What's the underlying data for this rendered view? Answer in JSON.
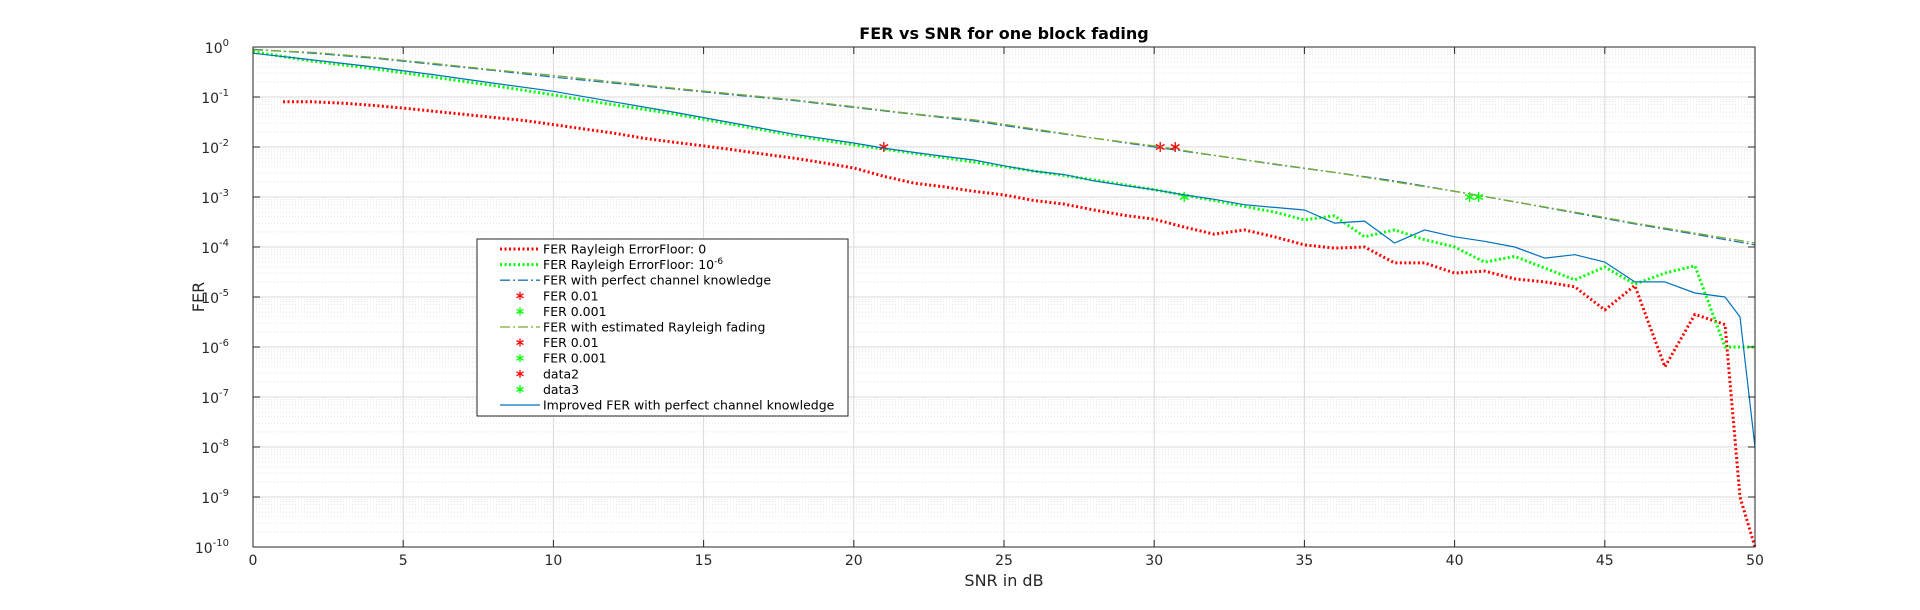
{
  "chart_data": {
    "type": "line",
    "title": "FER vs SNR for one block fading",
    "xlabel": "SNR in dB",
    "ylabel": "FER",
    "xlim": [
      0,
      50
    ],
    "ylim_exponent": [
      -10,
      0
    ],
    "yscale": "log",
    "grid": true,
    "minor_grid": true,
    "legend_position": "center-left",
    "x_ticks": [
      0,
      5,
      10,
      15,
      20,
      25,
      30,
      35,
      40,
      45,
      50
    ],
    "y_tick_exponents": [
      0,
      -1,
      -2,
      -3,
      -4,
      -5,
      -6,
      -7,
      -8,
      -9,
      -10
    ],
    "y_tick_base": "10",
    "series": [
      {
        "name": "FER Rayleigh ErrorFloor: 0",
        "style": "dotted",
        "color": "#ff0000",
        "width": 3,
        "x": [
          1,
          2,
          3,
          4,
          5,
          6,
          7,
          8,
          9,
          10,
          11,
          12,
          13,
          14,
          15,
          16,
          17,
          18,
          19,
          20,
          21,
          22,
          23,
          24,
          25,
          26,
          27,
          28,
          29,
          30,
          31,
          32,
          33,
          34,
          35,
          36,
          37,
          38,
          39,
          40,
          41,
          42,
          43,
          44,
          45,
          46,
          47,
          48,
          49,
          49.5,
          50
        ],
        "y": [
          0.08,
          0.08,
          0.075,
          0.068,
          0.06,
          0.052,
          0.045,
          0.039,
          0.034,
          0.028,
          0.023,
          0.019,
          0.015,
          0.0125,
          0.0105,
          0.0088,
          0.0072,
          0.006,
          0.0048,
          0.0038,
          0.0026,
          0.0019,
          0.0016,
          0.0013,
          0.0011,
          0.00085,
          0.00072,
          0.00055,
          0.00043,
          0.00036,
          0.00025,
          0.00018,
          0.00022,
          0.00016,
          0.00011,
          9.5e-05,
          0.0001,
          4.8e-05,
          4.8e-05,
          3e-05,
          3.3e-05,
          2.3e-05,
          2e-05,
          1.6e-05,
          5.5e-06,
          1.7e-05,
          4e-07,
          4.5e-06,
          2.8e-06,
          1e-09,
          1e-10
        ]
      },
      {
        "name": "FER Rayleigh ErrorFloor: 10",
        "name_superscript": "-6",
        "style": "dotted",
        "color": "#00ff00",
        "width": 3,
        "x": [
          0,
          2,
          4,
          6,
          8,
          10,
          12,
          14,
          16,
          18,
          20,
          22,
          24,
          26,
          28,
          30,
          32,
          34,
          35,
          36,
          37,
          38,
          39,
          40,
          41,
          42,
          43,
          44,
          45,
          46,
          47,
          48,
          49,
          50
        ],
        "y": [
          0.8,
          0.52,
          0.37,
          0.25,
          0.17,
          0.11,
          0.07,
          0.046,
          0.028,
          0.017,
          0.011,
          0.0075,
          0.005,
          0.0033,
          0.0022,
          0.0014,
          0.00085,
          0.0005,
          0.00035,
          0.00042,
          0.00016,
          0.00022,
          0.00014,
          0.0001,
          5e-05,
          6.5e-05,
          3.8e-05,
          2.2e-05,
          4e-05,
          1.8e-05,
          3e-05,
          4.2e-05,
          1e-06,
          1e-06
        ]
      },
      {
        "name": "FER with perfect channel knowledge",
        "style": "dashdot",
        "color": "#1f77b4",
        "width": 1.3,
        "x": [
          0,
          2,
          4,
          6,
          8,
          10,
          12,
          14,
          16,
          18,
          20,
          22,
          24,
          26,
          28,
          30,
          32,
          34,
          36,
          38,
          40,
          42,
          44,
          46,
          48,
          50
        ],
        "y": [
          0.9,
          0.75,
          0.6,
          0.45,
          0.34,
          0.25,
          0.19,
          0.145,
          0.11,
          0.085,
          0.062,
          0.045,
          0.033,
          0.022,
          0.015,
          0.01,
          0.0068,
          0.0045,
          0.0031,
          0.0021,
          0.0013,
          0.0008,
          0.00048,
          0.00029,
          0.00018,
          0.00011
        ]
      },
      {
        "name": "FER 0.01",
        "style": "marker",
        "color": "#ff0000",
        "x": [
          30.2
        ],
        "y": [
          0.01
        ]
      },
      {
        "name": "FER 0.001",
        "style": "marker",
        "color": "#00ff00",
        "x": [
          40.5
        ],
        "y": [
          0.001
        ]
      },
      {
        "name": "FER with estimated Rayleigh fading",
        "style": "dashdot",
        "color": "#77ac30",
        "width": 1.3,
        "x": [
          0,
          2,
          4,
          6,
          8,
          10,
          12,
          14,
          16,
          18,
          20,
          22,
          24,
          26,
          28,
          30,
          32,
          34,
          36,
          38,
          40,
          42,
          44,
          46,
          48,
          50
        ],
        "y": [
          0.88,
          0.78,
          0.62,
          0.47,
          0.35,
          0.27,
          0.2,
          0.15,
          0.115,
          0.088,
          0.064,
          0.046,
          0.035,
          0.023,
          0.015,
          0.0105,
          0.0068,
          0.0046,
          0.0031,
          0.002,
          0.0013,
          0.0008,
          0.0005,
          0.0003,
          0.00019,
          0.00012
        ]
      },
      {
        "name": "FER 0.01",
        "style": "marker",
        "color": "#ff0000",
        "x": [
          30.7
        ],
        "y": [
          0.01
        ]
      },
      {
        "name": "FER 0.001",
        "style": "marker",
        "color": "#00ff00",
        "x": [
          40.8
        ],
        "y": [
          0.001
        ]
      },
      {
        "name": "data2",
        "style": "marker",
        "color": "#ff0000",
        "x": [
          21
        ],
        "y": [
          0.01
        ]
      },
      {
        "name": "data3",
        "style": "marker",
        "color": "#00ff00",
        "x": [
          31
        ],
        "y": [
          0.001
        ]
      },
      {
        "name": "Improved FER with perfect channel knowledge",
        "style": "solid",
        "color": "#0072bd",
        "width": 1.2,
        "x": [
          0,
          2,
          4,
          6,
          8,
          10,
          12,
          14,
          16,
          18,
          20,
          21,
          22,
          23,
          24,
          25,
          26,
          27,
          28,
          29,
          30,
          31,
          32,
          33,
          34,
          35,
          36,
          37,
          38,
          39,
          40,
          41,
          42,
          43,
          44,
          45,
          46,
          47,
          48,
          49,
          49.5,
          50
        ],
        "y": [
          0.75,
          0.55,
          0.4,
          0.28,
          0.19,
          0.13,
          0.08,
          0.05,
          0.03,
          0.018,
          0.012,
          0.0095,
          0.0078,
          0.0065,
          0.0055,
          0.0042,
          0.0033,
          0.0028,
          0.0021,
          0.0017,
          0.0014,
          0.0011,
          0.0009,
          0.0007,
          0.00062,
          0.00055,
          0.0003,
          0.00033,
          0.00012,
          0.00022,
          0.00016,
          0.00013,
          0.0001,
          6e-05,
          7e-05,
          5e-05,
          2e-05,
          2e-05,
          1.2e-05,
          1e-05,
          4e-06,
          1e-08
        ]
      }
    ]
  }
}
